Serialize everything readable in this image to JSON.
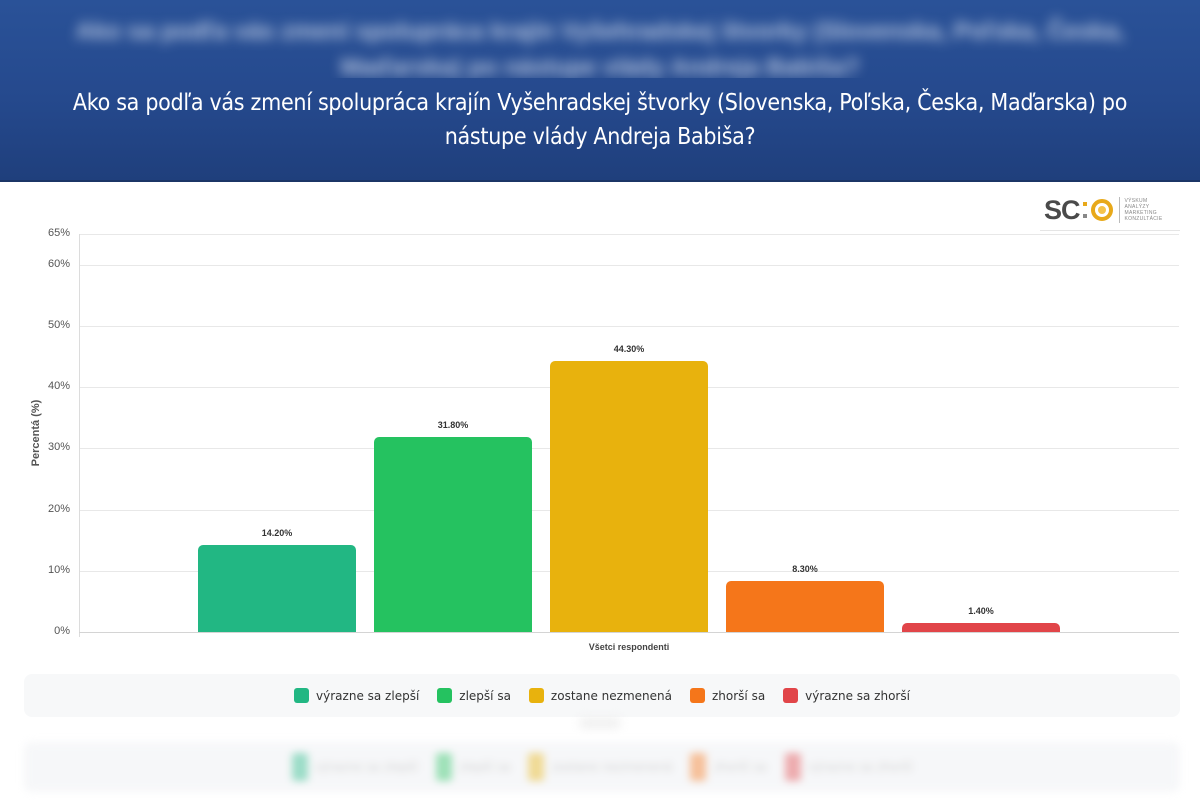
{
  "header": {
    "blurred_title": "Ako sa podľa vás zmení spolupráca krajín Vyšehradskej štvorky (Slovenska, Poľska, Česka, Maďarska) po nástupe vlády Andreja Babiša?",
    "title_line1": "Ako sa podľa vás zmení spolupráca krajín Vyšehradskej štvorky (Slovenska, Poľska, Česka, Maďarska) po",
    "title_line2": "nástupe vlády Andreja Babiša?",
    "background_color": "#25498d"
  },
  "logo": {
    "mark": "SC",
    "lines": [
      "VÝSKUM",
      "ANALÝZY",
      "MARKETING",
      "KONZULTÁCIE"
    ]
  },
  "chart_data": {
    "type": "bar",
    "title": "Ako sa podľa vás zmení spolupráca krajín Vyšehradskej štvorky (Slovenska, Poľska, Česka, Maďarska) po nástupe vlády Andreja Babiša?",
    "xlabel": "Všetci respondenti",
    "ylabel": "Percentá (%)",
    "ylim": [
      0,
      65
    ],
    "y_ticks": [
      "0%",
      "10%",
      "20%",
      "30%",
      "40%",
      "50%",
      "60%",
      "65%"
    ],
    "y_tick_values": [
      0,
      10,
      20,
      30,
      40,
      50,
      60,
      65
    ],
    "grid": true,
    "legend_position": "bottom",
    "categories": [
      "Všetci respondenti"
    ],
    "series": [
      {
        "name": "výrazne sa zlepší",
        "values": [
          14.2
        ],
        "label": "14.20%",
        "color": "#22b783"
      },
      {
        "name": "zlepší sa",
        "values": [
          31.8
        ],
        "label": "31.80%",
        "color": "#25c260"
      },
      {
        "name": "zostane nezmenená",
        "values": [
          44.3
        ],
        "label": "44.30%",
        "color": "#e8b20d"
      },
      {
        "name": "zhorší sa",
        "values": [
          8.3
        ],
        "label": "8.30%",
        "color": "#f5761a"
      },
      {
        "name": "výrazne sa zhorší",
        "values": [
          1.4
        ],
        "label": "1.40%",
        "color": "#e14549"
      }
    ]
  }
}
